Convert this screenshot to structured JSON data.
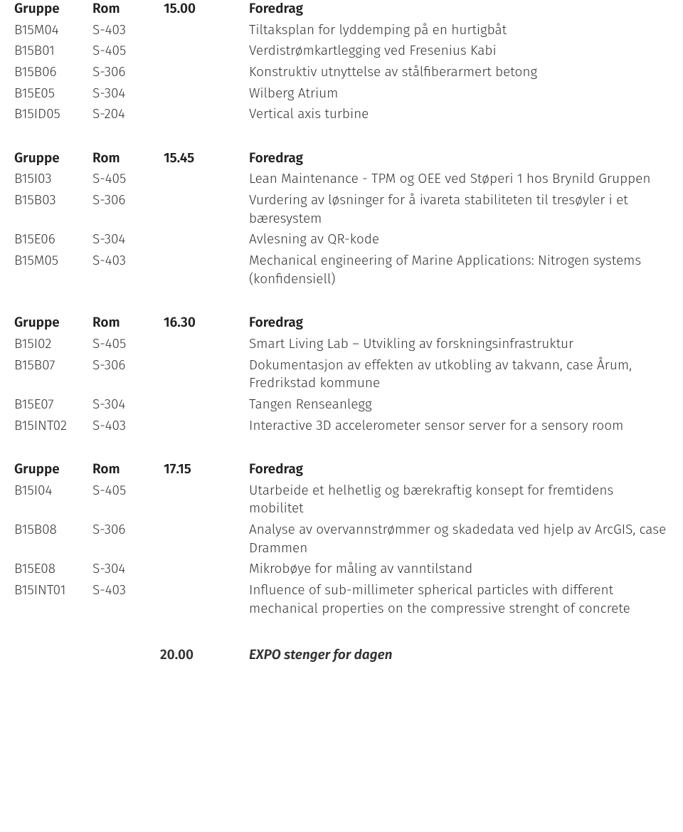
{
  "sections": [
    {
      "header": {
        "group": "Gruppe",
        "room": "Rom",
        "time": "15.00",
        "text": "Foredrag"
      },
      "rows": [
        {
          "group": "B15M04",
          "room": "S-403",
          "text": "Tiltaksplan for lyddemping på en hurtigbåt"
        },
        {
          "group": "B15B01",
          "room": "S-405",
          "text": "Verdistrømkartlegging ved Fresenius Kabi"
        },
        {
          "group": "B15B06",
          "room": "S-306",
          "text": "Konstruktiv utnyttelse av stålfiberarmert betong"
        },
        {
          "group": "B15E05",
          "room": "S-304",
          "text": "Wilberg Atrium"
        },
        {
          "group": "B15ID05",
          "room": "S-204",
          "text": "Vertical axis turbine"
        }
      ]
    },
    {
      "header": {
        "group": "Gruppe",
        "room": "Rom",
        "time": "15.45",
        "text": "Foredrag"
      },
      "rows": [
        {
          "group": "B15I03",
          "room": "S-405",
          "text": "Lean Maintenance - TPM og OEE ved Støperi 1 hos Brynild Gruppen"
        },
        {
          "group": "B15B03",
          "room": "S-306",
          "text": "Vurdering av løsninger for å ivareta stabiliteten til tresøyler i et bæresystem"
        },
        {
          "group": "B15E06",
          "room": "S-304",
          "text": "Avlesning av QR-kode"
        },
        {
          "group": "B15M05",
          "room": "S-403",
          "text": "Mechanical engineering of Marine Applications: Nitrogen systems (konfidensiell)"
        }
      ]
    },
    {
      "header": {
        "group": "Gruppe",
        "room": "Rom",
        "time": "16.30",
        "text": "Foredrag"
      },
      "rows": [
        {
          "group": "B15I02",
          "room": "S-405",
          "text": "Smart Living Lab – Utvikling av forskningsinfrastruktur"
        },
        {
          "group": "B15B07",
          "room": "S-306",
          "text": "Dokumentasjon av effekten av utkobling av takvann, case Årum, Fredrikstad kommune"
        },
        {
          "group": "B15E07",
          "room": "S-304",
          "text": "Tangen Renseanlegg"
        },
        {
          "group": "B15INT02",
          "room": "S-403",
          "text": "Interactive 3D accelerometer sensor server for a sensory room"
        }
      ]
    },
    {
      "header": {
        "group": "Gruppe",
        "room": "Rom",
        "time": "17.15",
        "text": "Foredrag"
      },
      "rows": [
        {
          "group": "B15I04",
          "room": "S-405",
          "text": "Utarbeide et helhetlig og bærekraftig konsept for fremtidens mobilitet"
        },
        {
          "group": "B15B08",
          "room": "S-306",
          "text": "Analyse av overvannstrømmer og skadedata ved hjelp av ArcGIS, case Drammen"
        },
        {
          "group": "B15E08",
          "room": "S-304",
          "text": "Mikrobøye for måling av vanntilstand"
        },
        {
          "group": "B15INT01",
          "room": "S-403",
          "text": "Influence of sub-millimeter spherical particles with different mechanical properties on the compressive strenght of concrete"
        }
      ]
    }
  ],
  "footer": {
    "time": "20.00",
    "text": "EXPO stenger for dagen"
  }
}
